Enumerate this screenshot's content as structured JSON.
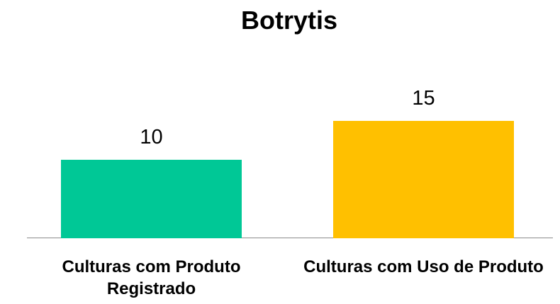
{
  "chart_data": {
    "type": "bar",
    "title": "Botrytis",
    "categories": [
      "Culturas com Produto Registrado",
      "Culturas com Uso de Produto"
    ],
    "values": [
      10,
      15
    ],
    "colors": [
      "#00c896",
      "#ffc000"
    ]
  }
}
